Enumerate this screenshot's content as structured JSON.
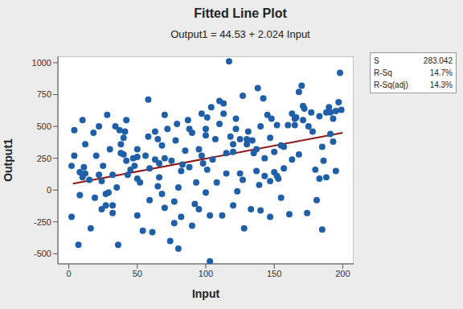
{
  "chart_data": {
    "type": "scatter",
    "title": "Fitted Line Plot",
    "subtitle": "Output1 = 44.53 + 2.024 Input",
    "x_label": "Input",
    "y_label": "Output1",
    "xlim": [
      -8,
      208
    ],
    "ylim": [
      -580,
      1050
    ],
    "xticks": [
      0,
      50,
      100,
      150,
      200
    ],
    "yticks": [
      -500,
      -250,
      0,
      250,
      500,
      750,
      1000
    ],
    "grid": false,
    "series": [
      {
        "type": "scatter",
        "color": "#1f5fa8",
        "marker": "circle",
        "x": [
          2,
          2,
          4,
          4,
          7,
          8,
          8,
          10,
          10,
          11,
          12,
          12,
          15,
          16,
          18,
          19,
          20,
          22,
          22,
          24,
          24,
          25,
          27,
          27,
          28,
          29,
          30,
          32,
          32,
          32,
          34,
          35,
          36,
          37,
          38,
          38,
          40,
          40,
          41,
          42,
          42,
          43,
          45,
          47,
          48,
          50,
          50,
          50,
          50,
          52,
          54,
          56,
          58,
          58,
          59,
          59,
          61,
          63,
          63,
          65,
          65,
          66,
          66,
          68,
          68,
          70,
          70,
          70,
          72,
          74,
          75,
          77,
          77,
          78,
          79,
          80,
          80,
          82,
          82,
          83,
          85,
          87,
          88,
          88,
          90,
          90,
          92,
          93,
          95,
          95,
          97,
          97,
          98,
          100,
          100,
          100,
          101,
          101,
          103,
          103,
          104,
          105,
          107,
          108,
          110,
          110,
          112,
          113,
          113,
          115,
          115,
          117,
          118,
          120,
          120,
          120,
          122,
          122,
          123,
          125,
          125,
          127,
          127,
          128,
          130,
          130,
          131,
          133,
          134,
          135,
          137,
          137,
          138,
          139,
          140,
          140,
          142,
          143,
          143,
          145,
          147,
          147,
          147,
          148,
          150,
          150,
          152,
          152,
          153,
          155,
          155,
          157,
          157,
          160,
          161,
          163,
          163,
          165,
          165,
          166,
          168,
          168,
          170,
          171,
          171,
          172,
          174,
          175,
          177,
          178,
          180,
          181,
          183,
          183,
          185,
          185,
          186,
          188,
          188,
          190,
          191,
          191,
          193,
          193,
          195,
          195,
          197,
          198,
          199
        ],
        "values": [
          -210,
          190,
          470,
          270,
          -430,
          -40,
          140,
          100,
          550,
          180,
          360,
          130,
          80,
          -300,
          450,
          -60,
          270,
          500,
          120,
          70,
          -150,
          190,
          -30,
          -120,
          590,
          -20,
          320,
          120,
          -120,
          -180,
          500,
          20,
          -430,
          470,
          290,
          360,
          280,
          410,
          460,
          550,
          230,
          120,
          160,
          250,
          190,
          320,
          260,
          -200,
          90,
          60,
          -320,
          270,
          710,
          420,
          170,
          -80,
          -330,
          460,
          240,
          400,
          30,
          100,
          210,
          350,
          -30,
          250,
          -140,
          590,
          480,
          -400,
          230,
          -90,
          -260,
          390,
          520,
          -460,
          20,
          150,
          -210,
          200,
          310,
          550,
          180,
          480,
          450,
          -280,
          -110,
          60,
          320,
          -150,
          600,
          270,
          210,
          430,
          -20,
          480,
          570,
          160,
          -560,
          -200,
          650,
          240,
          400,
          60,
          700,
          520,
          -200,
          600,
          680,
          290,
          130,
          1010,
          420,
          360,
          300,
          -120,
          480,
          560,
          -10,
          400,
          130,
          80,
          740,
          -300,
          400,
          360,
          460,
          -150,
          390,
          290,
          150,
          320,
          800,
          40,
          500,
          -160,
          720,
          250,
          110,
          590,
          70,
          -210,
          410,
          560,
          140,
          300,
          110,
          510,
          90,
          350,
          -60,
          340,
          170,
          510,
          -190,
          600,
          240,
          510,
          560,
          570,
          770,
          280,
          820,
          550,
          660,
          640,
          -180,
          500,
          610,
          460,
          160,
          -80,
          580,
          90,
          -310,
          340,
          230,
          610,
          100,
          650,
          610,
          440,
          380,
          560,
          150,
          620,
          690,
          920,
          630
        ]
      },
      {
        "type": "line",
        "color": "#8b1a1a",
        "line_style": "solid",
        "x": [
          3,
          200
        ],
        "values": [
          50.6,
          449.3
        ]
      }
    ],
    "stats": [
      {
        "label": "S",
        "value": "283.042"
      },
      {
        "label": "R-Sq",
        "value": "14.7%"
      },
      {
        "label": "R-Sq(adj)",
        "value": "14.3%"
      }
    ]
  }
}
